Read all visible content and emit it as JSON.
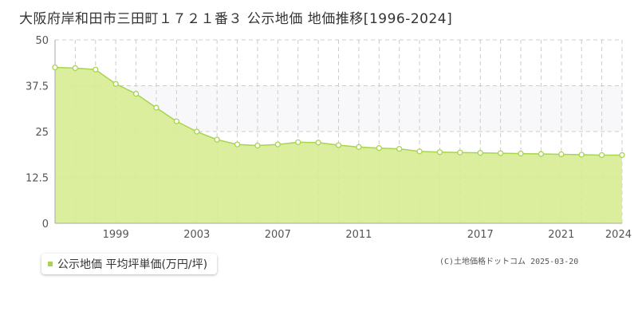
{
  "title": "大阪府岸和田市三田町１７２１番３ 公示地価 地価推移[1996-2024]",
  "legend": {
    "label": "公示地価 平均坪単価(万円/坪)"
  },
  "copyright": "(C)土地価格ドットコム 2025-03-20",
  "colors": {
    "area_fill": "#d6ec93",
    "line": "#a8d44e",
    "band": "#f8f8fa",
    "grid": "#cccccc",
    "axis": "#aaaaaa"
  },
  "chart_data": {
    "type": "area",
    "x": [
      1996,
      1997,
      1998,
      1999,
      2000,
      2001,
      2002,
      2003,
      2004,
      2005,
      2006,
      2007,
      2008,
      2009,
      2010,
      2011,
      2012,
      2013,
      2014,
      2015,
      2016,
      2017,
      2018,
      2019,
      2020,
      2021,
      2022,
      2023,
      2024
    ],
    "series": [
      {
        "name": "公示地価 平均坪単価(万円/坪)",
        "values": [
          42.5,
          42.3,
          41.9,
          38.0,
          35.3,
          31.5,
          27.8,
          25.0,
          22.8,
          21.5,
          21.2,
          21.5,
          22.1,
          22.0,
          21.3,
          20.8,
          20.5,
          20.3,
          19.6,
          19.4,
          19.3,
          19.2,
          19.1,
          19.0,
          18.9,
          18.8,
          18.7,
          18.6,
          18.6
        ]
      }
    ],
    "x_ticks": [
      "1999",
      "2003",
      "2007",
      "2011",
      "2017",
      "2021",
      "2024"
    ],
    "y_ticks": [
      "0",
      "12.5",
      "25",
      "37.5",
      "50"
    ],
    "ylim": [
      0,
      50
    ],
    "xlim": [
      1996,
      2024
    ],
    "grid": true
  }
}
